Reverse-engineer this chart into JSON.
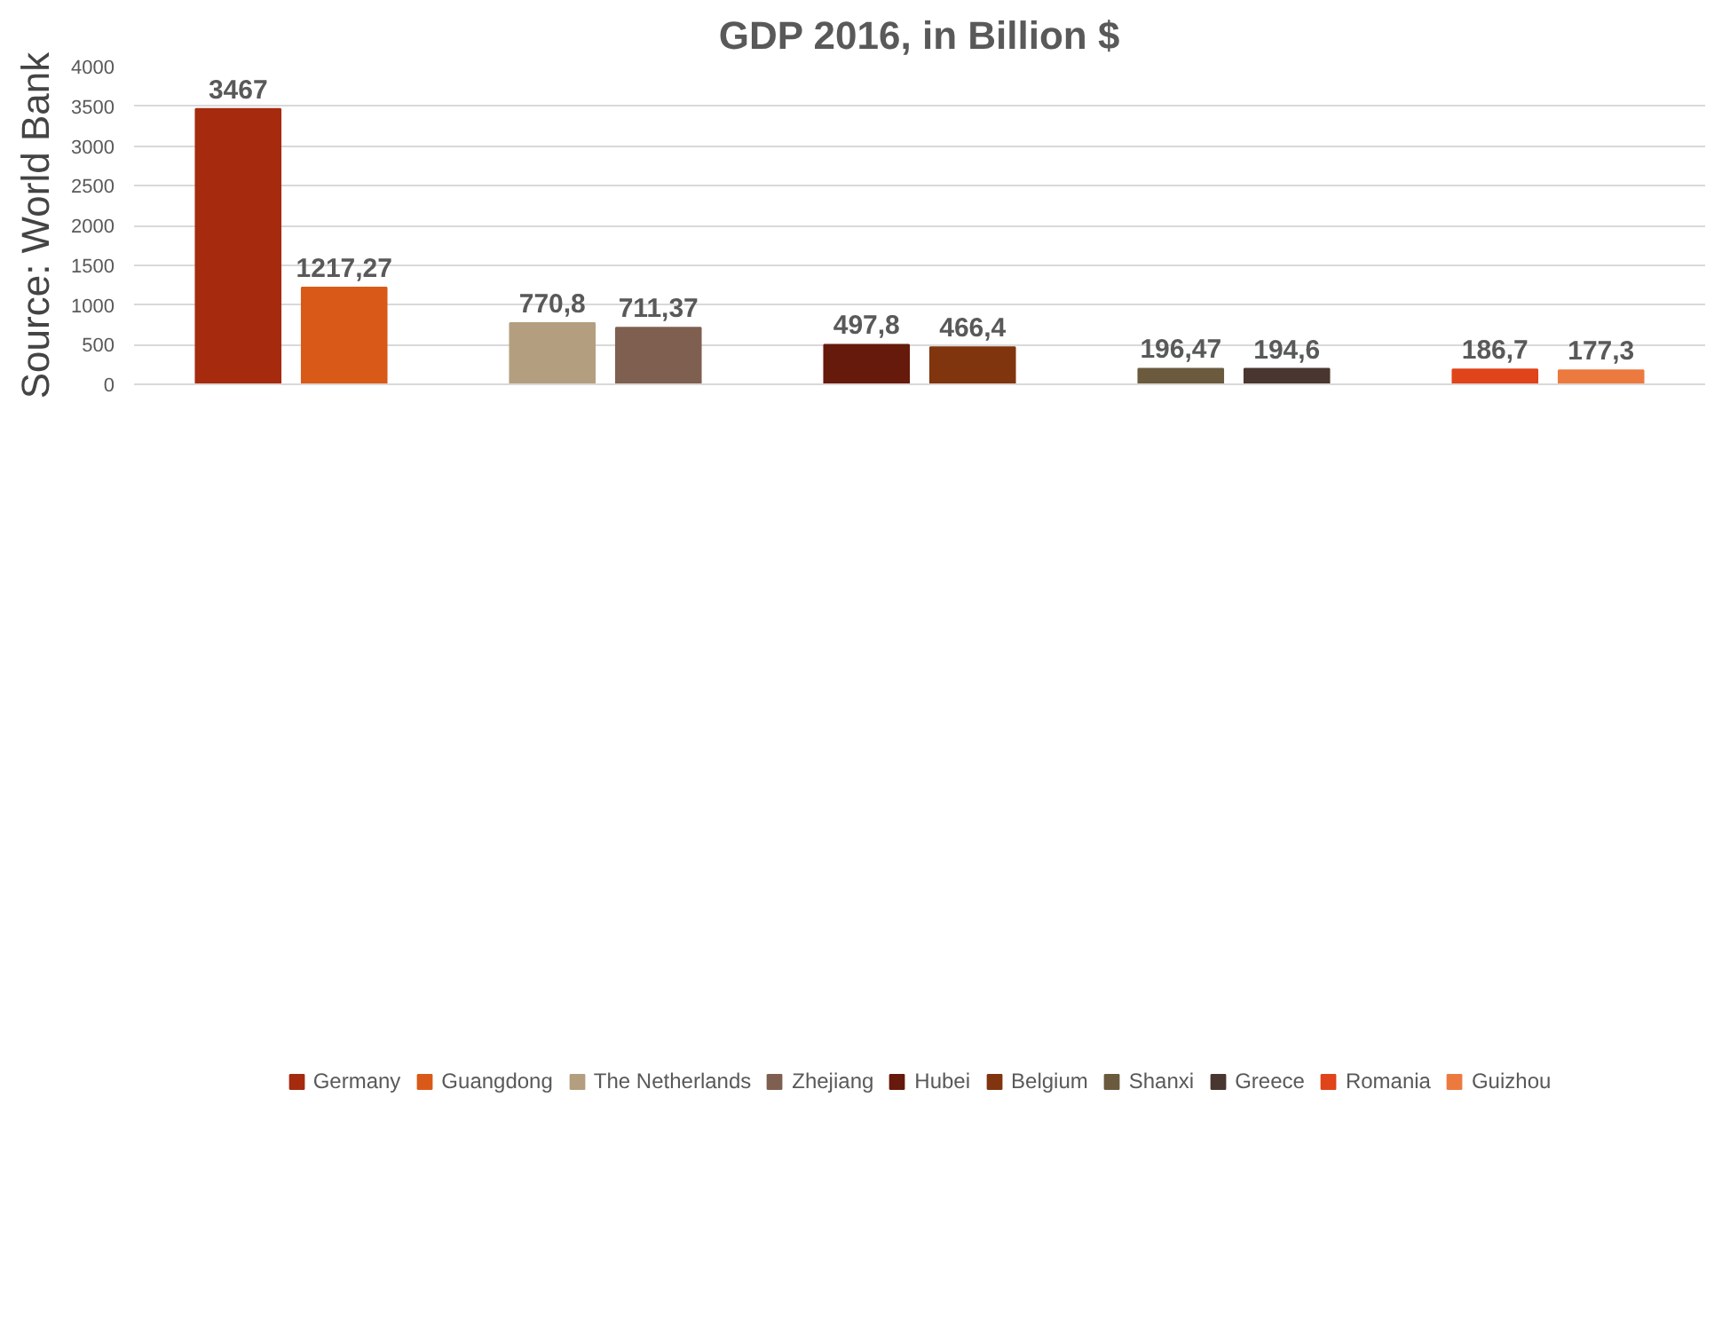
{
  "chart_data": {
    "type": "bar",
    "title": "GDP 2016, in Billion $",
    "annotations": [
      "Source: World Bank"
    ],
    "categories": [
      null,
      null,
      null,
      null,
      null
    ],
    "series": [
      {
        "name": "Germany",
        "color": "#a52a0e",
        "values": [
          3467,
          null,
          null,
          null,
          null
        ],
        "value_labels": [
          "3467",
          null,
          null,
          null,
          null
        ]
      },
      {
        "name": "Guangdong",
        "color": "#d95a18",
        "values": [
          1217.27,
          null,
          null,
          null,
          null
        ],
        "value_labels": [
          "1217,27",
          null,
          null,
          null,
          null
        ]
      },
      {
        "name": "The Netherlands",
        "color": "#b39f7f",
        "values": [
          null,
          770.8,
          null,
          null,
          null
        ],
        "value_labels": [
          null,
          "770,8",
          null,
          null,
          null
        ]
      },
      {
        "name": "Zhejiang",
        "color": "#7f5f50",
        "values": [
          null,
          711.37,
          null,
          null,
          null
        ],
        "value_labels": [
          null,
          "711,37",
          null,
          null,
          null
        ]
      },
      {
        "name": "Hubei",
        "color": "#661a0c",
        "values": [
          null,
          null,
          497.8,
          null,
          null
        ],
        "value_labels": [
          null,
          null,
          "497,8",
          null,
          null
        ]
      },
      {
        "name": "Belgium",
        "color": "#80350e",
        "values": [
          null,
          null,
          466.4,
          null,
          null
        ],
        "value_labels": [
          null,
          null,
          "466,4",
          null,
          null
        ]
      },
      {
        "name": "Shanxi",
        "color": "#6b5a3e",
        "values": [
          null,
          null,
          null,
          196.47,
          null
        ],
        "value_labels": [
          null,
          null,
          null,
          "196,47",
          null
        ]
      },
      {
        "name": "Greece",
        "color": "#4a3630",
        "values": [
          null,
          null,
          null,
          194.6,
          null
        ],
        "value_labels": [
          null,
          null,
          null,
          "194,6",
          null
        ]
      },
      {
        "name": "Romania",
        "color": "#e0441a",
        "values": [
          null,
          null,
          null,
          null,
          186.7
        ],
        "value_labels": [
          null,
          null,
          null,
          null,
          "186,7"
        ]
      },
      {
        "name": "Guizhou",
        "color": "#ec7a3f",
        "values": [
          null,
          null,
          null,
          null,
          177.3
        ],
        "value_labels": [
          null,
          null,
          null,
          null,
          "177,3"
        ]
      }
    ],
    "ylim": [
      0,
      4000
    ],
    "yticks": [
      0,
      500,
      1000,
      1500,
      2000,
      2500,
      3000,
      3500,
      4000
    ],
    "grid": "y",
    "legend": "bottom"
  }
}
